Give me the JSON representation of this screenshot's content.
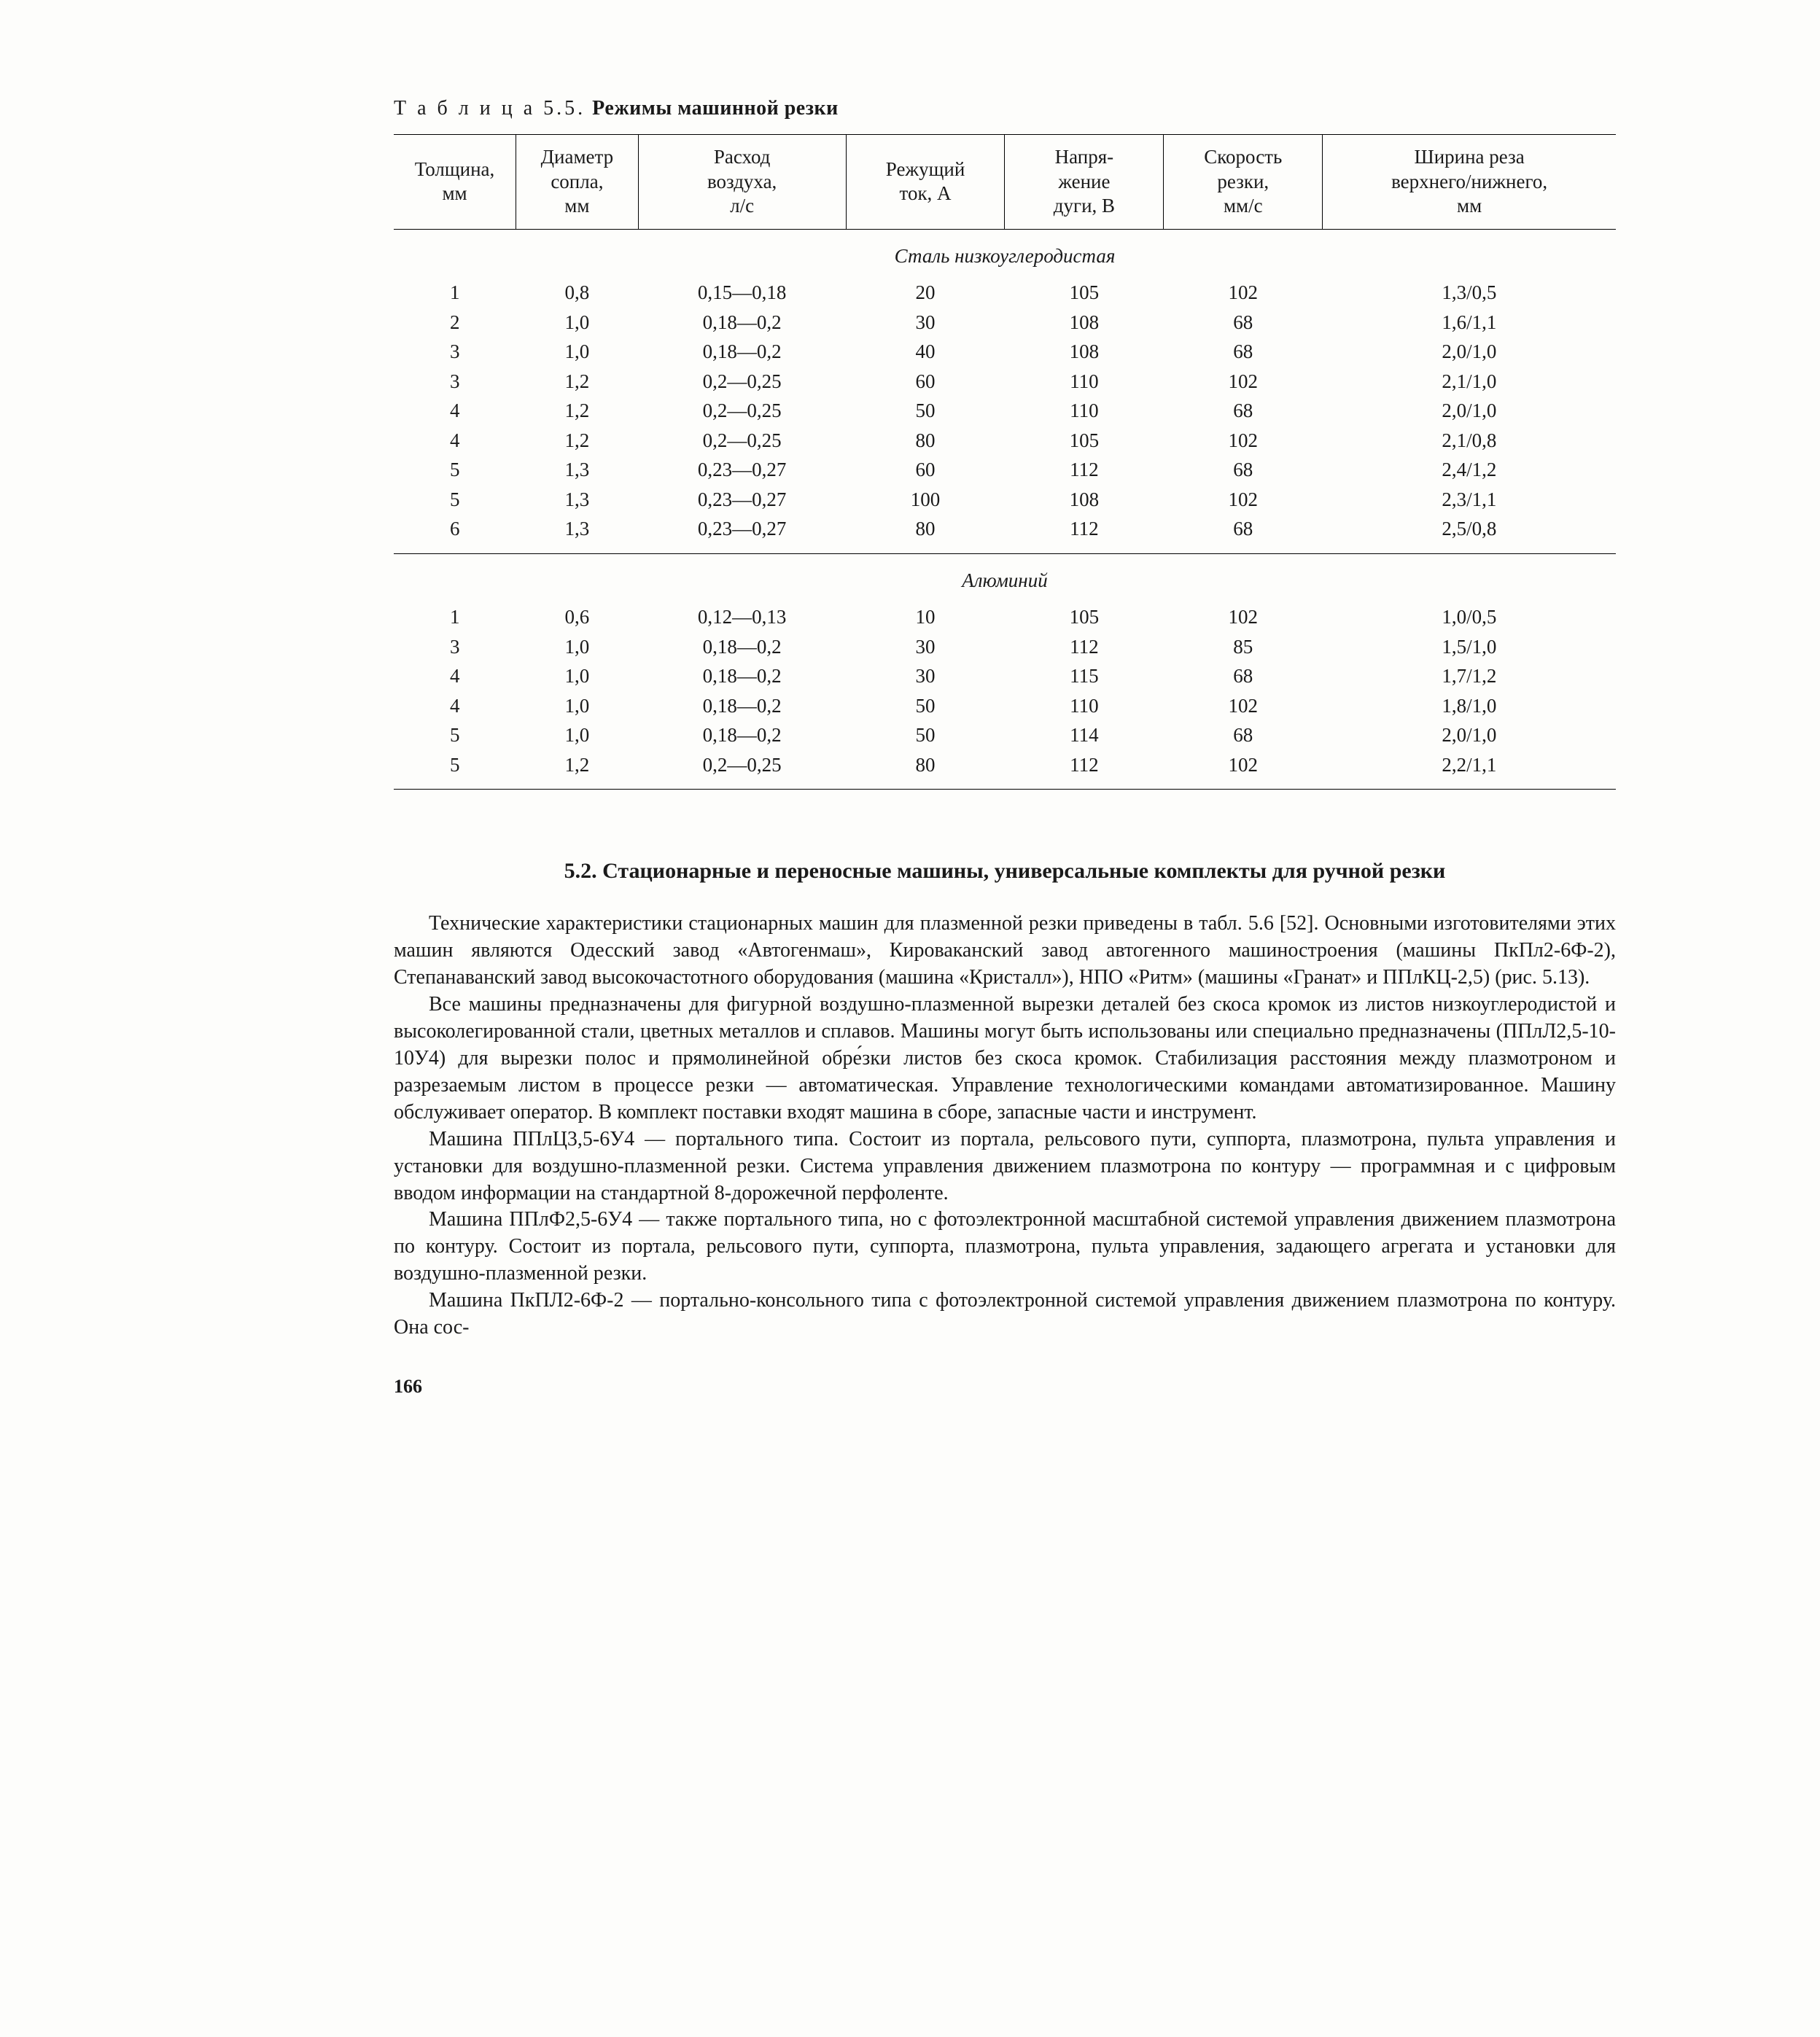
{
  "table": {
    "caption_label": "Т а б л и ц а  5.5.",
    "caption_title": "Режимы машинной резки",
    "headers": [
      "Толщина,\nмм",
      "Диаметр\nсопла,\nмм",
      "Расход\nвоздуха,\nл/с",
      "Режущий\nток, А",
      "Напря-\nжение\nдуги, В",
      "Скорость\nрезки,\nмм/с",
      "Ширина реза\nверхнего/нижнего,\nмм"
    ],
    "section1_title": "Сталь низкоуглеродистая",
    "section1_rows": [
      [
        "1",
        "0,8",
        "0,15—0,18",
        "20",
        "105",
        "102",
        "1,3/0,5"
      ],
      [
        "2",
        "1,0",
        "0,18—0,2",
        "30",
        "108",
        "68",
        "1,6/1,1"
      ],
      [
        "3",
        "1,0",
        "0,18—0,2",
        "40",
        "108",
        "68",
        "2,0/1,0"
      ],
      [
        "3",
        "1,2",
        "0,2—0,25",
        "60",
        "110",
        "102",
        "2,1/1,0"
      ],
      [
        "4",
        "1,2",
        "0,2—0,25",
        "50",
        "110",
        "68",
        "2,0/1,0"
      ],
      [
        "4",
        "1,2",
        "0,2—0,25",
        "80",
        "105",
        "102",
        "2,1/0,8"
      ],
      [
        "5",
        "1,3",
        "0,23—0,27",
        "60",
        "112",
        "68",
        "2,4/1,2"
      ],
      [
        "5",
        "1,3",
        "0,23—0,27",
        "100",
        "108",
        "102",
        "2,3/1,1"
      ],
      [
        "6",
        "1,3",
        "0,23—0,27",
        "80",
        "112",
        "68",
        "2,5/0,8"
      ]
    ],
    "section2_title": "Алюминий",
    "section2_rows": [
      [
        "1",
        "0,6",
        "0,12—0,13",
        "10",
        "105",
        "102",
        "1,0/0,5"
      ],
      [
        "3",
        "1,0",
        "0,18—0,2",
        "30",
        "112",
        "85",
        "1,5/1,0"
      ],
      [
        "4",
        "1,0",
        "0,18—0,2",
        "30",
        "115",
        "68",
        "1,7/1,2"
      ],
      [
        "4",
        "1,0",
        "0,18—0,2",
        "50",
        "110",
        "102",
        "1,8/1,0"
      ],
      [
        "5",
        "1,0",
        "0,18—0,2",
        "50",
        "114",
        "68",
        "2,0/1,0"
      ],
      [
        "5",
        "1,2",
        "0,2—0,25",
        "80",
        "112",
        "102",
        "2,2/1,1"
      ]
    ]
  },
  "heading": "5.2. Стационарные и переносные машины, универсальные комплекты для ручной резки",
  "paragraphs": [
    "Технические характеристики стационарных машин для плазменной резки приведены в табл. 5.6 [52]. Основными изготовителями этих машин являются Одесский завод «Автогенмаш», Кироваканский завод автогенного машиностроения (машины ПкПл2-6Ф-2), Степанаванский завод высокочастотного оборудования (машина «Кристалл»), НПО «Ритм» (машины «Гранат» и ППлКЦ-2,5) (рис. 5.13).",
    "Все машины предназначены для фигурной воздушно-плазменной вырезки деталей без скоса кромок из листов низкоуглеродистой и высоколегированной стали, цветных металлов и сплавов. Машины могут быть использованы или специально предназначены (ППлЛ2,5-10-10У4) для вырезки полос и прямолинейной обре́зки листов без скоса кромок. Стабилизация расстояния между плазмотроном и разрезаемым листом в процессе резки — автоматическая. Управление технологическими командами автоматизированное. Машину обслуживает оператор. В комплект поставки входят машина в сборе, запасные части и инструмент.",
    "Машина ППлЦ3,5-6У4 — портального типа. Состоит из портала, рельсового пути, суппорта, плазмотрона, пульта управления и установки для воздушно-плазменной резки. Система управления движением плазмотрона по контуру — программная и с цифровым вводом информации на стандартной 8-дорожечной перфоленте.",
    "Машина ППлФ2,5-6У4 — также портального типа, но с фотоэлектронной масштабной системой управления движением плазмотрона по контуру. Состоит из портала, рельсового пути, суппорта, плазмотрона, пульта управления, задающего агрегата и установки для воздушно-плазменной резки.",
    "Машина ПкПЛ2-6Ф-2 — портально-консольного типа с фотоэлектронной системой управления движением плазмотрона по контуру. Она сос-"
  ],
  "page_number": "166"
}
